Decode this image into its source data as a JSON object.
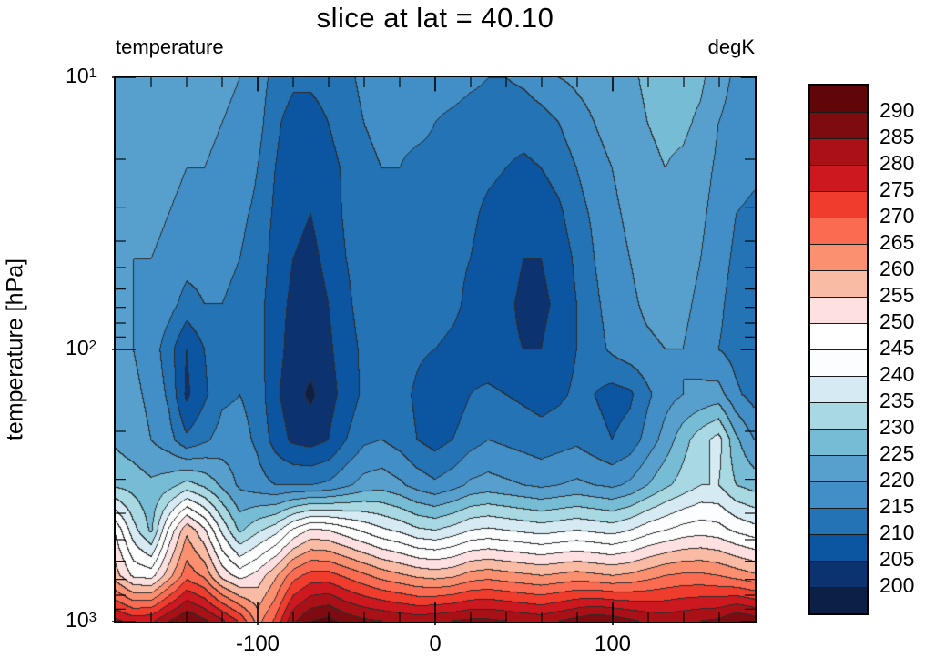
{
  "title": "slice at lat = 40.10",
  "labels": {
    "field": "temperature",
    "units": "degK"
  },
  "y_axis": {
    "label": "temperature [hPa]",
    "scale": "log",
    "range_hPa": [
      10,
      1000
    ],
    "tick_labels": [
      {
        "mantissa": "10",
        "exponent": "1",
        "value": 10
      },
      {
        "mantissa": "10",
        "exponent": "2",
        "value": 100
      },
      {
        "mantissa": "10",
        "exponent": "3",
        "value": 1000
      }
    ]
  },
  "x_axis": {
    "range": [
      -180,
      180
    ],
    "tick_values": [
      -100,
      0,
      100
    ],
    "tick_labels": [
      "-100",
      "0",
      "100"
    ],
    "minor_tick_step": 20
  },
  "colorbar": {
    "tick_labels": [
      "290",
      "285",
      "280",
      "275",
      "270",
      "265",
      "260",
      "255",
      "250",
      "245",
      "240",
      "235",
      "230",
      "225",
      "220",
      "215",
      "210",
      "205",
      "200"
    ]
  },
  "chart_data": {
    "type": "filled_contour",
    "title": "slice at lat = 40.10",
    "field": "temperature",
    "units": "degK",
    "y_scale": "log",
    "contour_interval": 5,
    "contour_levels": [
      200,
      205,
      210,
      215,
      220,
      225,
      230,
      235,
      240,
      245,
      250,
      255,
      260,
      265,
      270,
      275,
      280,
      285,
      290
    ],
    "colors": [
      "#0c1f45",
      "#0d3270",
      "#0c55a0",
      "#2373b5",
      "#418fc6",
      "#579fcd",
      "#76bcd4",
      "#a8d8e2",
      "#d5eaf2",
      "#fbfdfe",
      "#ffffff",
      "#fde0df",
      "#fabba5",
      "#fb9070",
      "#fa6b51",
      "#ef3c2d",
      "#cd1820",
      "#a91117",
      "#7d0b10",
      "#600508"
    ],
    "contour_line_color": "#2d2d2d",
    "x": [
      -180,
      -170,
      -160,
      -150,
      -140,
      -130,
      -120,
      -110,
      -100,
      -90,
      -80,
      -70,
      -60,
      -50,
      -40,
      -30,
      -20,
      -10,
      0,
      10,
      20,
      30,
      40,
      50,
      60,
      70,
      80,
      90,
      100,
      110,
      120,
      130,
      140,
      150,
      160,
      170,
      180
    ],
    "y_pressure_hPa": [
      10,
      14.7,
      21.5,
      31.6,
      46.4,
      68.1,
      100,
      147,
      215,
      316,
      464,
      681,
      1000
    ],
    "values": [
      [
        222,
        222,
        222,
        222,
        222,
        222,
        221,
        220,
        218,
        213,
        211,
        211,
        212,
        214,
        216,
        217,
        217,
        217,
        217,
        217,
        216,
        215,
        215,
        216,
        218,
        220,
        221,
        222,
        223,
        224,
        226,
        227,
        227,
        226,
        222,
        219,
        218
      ],
      [
        222,
        222,
        222,
        222,
        222,
        221,
        220,
        219,
        217,
        211,
        208,
        208,
        210,
        213,
        215,
        216,
        216,
        216,
        215,
        214,
        213,
        213,
        212,
        212,
        213,
        215,
        218,
        220,
        222,
        223,
        225,
        226,
        226,
        224,
        220,
        218,
        217
      ],
      [
        222,
        222,
        221,
        221,
        220,
        220,
        219,
        218,
        215,
        210,
        207,
        206,
        208,
        211,
        214,
        215,
        215,
        214,
        214,
        213,
        212,
        211,
        210,
        209,
        210,
        212,
        215,
        218,
        220,
        222,
        224,
        225,
        224,
        222,
        219,
        217,
        216
      ],
      [
        221,
        221,
        221,
        220,
        219,
        218,
        218,
        216,
        214,
        209,
        206,
        205,
        207,
        211,
        213,
        214,
        214,
        214,
        213,
        212,
        211,
        209,
        208,
        207,
        207,
        209,
        213,
        216,
        219,
        221,
        223,
        224,
        223,
        221,
        218,
        215,
        214
      ],
      [
        221,
        220,
        220,
        219,
        217,
        217,
        216,
        215,
        213,
        208,
        205,
        204,
        206,
        210,
        212,
        214,
        214,
        213,
        213,
        211,
        210,
        208,
        207,
        205,
        205,
        207,
        211,
        215,
        218,
        220,
        222,
        223,
        222,
        220,
        217,
        214,
        213
      ],
      [
        221,
        220,
        219,
        217,
        213,
        215,
        215,
        214,
        212,
        207,
        204,
        203,
        205,
        209,
        212,
        213,
        213,
        213,
        212,
        211,
        209,
        208,
        206,
        204,
        204,
        206,
        210,
        214,
        217,
        219,
        221,
        222,
        221,
        219,
        216,
        213,
        212
      ],
      [
        222,
        220,
        218,
        212,
        205,
        210,
        214,
        214,
        212,
        207,
        203,
        202,
        204,
        208,
        211,
        213,
        213,
        211,
        210,
        209,
        208,
        207,
        206,
        205,
        205,
        207,
        210,
        213,
        216,
        218,
        219,
        220,
        220,
        218,
        215,
        213,
        212
      ],
      [
        223,
        221,
        219,
        214,
        204,
        209,
        214,
        215,
        213,
        206,
        202,
        199,
        203,
        207,
        211,
        213,
        212,
        209,
        206,
        207,
        210,
        211,
        210,
        209,
        208,
        209,
        211,
        210,
        208,
        209,
        214,
        218,
        220,
        221,
        222,
        216,
        213
      ],
      [
        224,
        222,
        220,
        217,
        211,
        214,
        217,
        217,
        214,
        208,
        204,
        203,
        205,
        210,
        214,
        215,
        213,
        210,
        208,
        210,
        213,
        215,
        214,
        213,
        212,
        213,
        214,
        212,
        210,
        212,
        217,
        222,
        228,
        233,
        237,
        226,
        220
      ],
      [
        229,
        228,
        226,
        228,
        232,
        229,
        224,
        219,
        217,
        215,
        215,
        215,
        216,
        219,
        222,
        223,
        221,
        218,
        216,
        218,
        221,
        222,
        221,
        220,
        219,
        220,
        221,
        220,
        219,
        221,
        225,
        229,
        232,
        235,
        235,
        230,
        228
      ],
      [
        249,
        237,
        229,
        246,
        259,
        251,
        239,
        229,
        234,
        238,
        246,
        251,
        250,
        247,
        244,
        241,
        239,
        236,
        235,
        237,
        240,
        241,
        240,
        239,
        238,
        239,
        240,
        239,
        238,
        240,
        243,
        245,
        247,
        248,
        247,
        244,
        242
      ],
      [
        257,
        249,
        248,
        258,
        268,
        264,
        253,
        248,
        252,
        259,
        268,
        272,
        272,
        269,
        266,
        263,
        261,
        259,
        258,
        259,
        262,
        263,
        262,
        261,
        260,
        261,
        262,
        261,
        260,
        261,
        263,
        265,
        266,
        266,
        265,
        263,
        261
      ],
      [
        281,
        278,
        279,
        285,
        290,
        286,
        281,
        274,
        263,
        271,
        284,
        290,
        292,
        288,
        286,
        285,
        284,
        283,
        284,
        285,
        286,
        286,
        285,
        284,
        283,
        285,
        287,
        289,
        288,
        286,
        284,
        283,
        284,
        285,
        286,
        290,
        288
      ]
    ]
  }
}
